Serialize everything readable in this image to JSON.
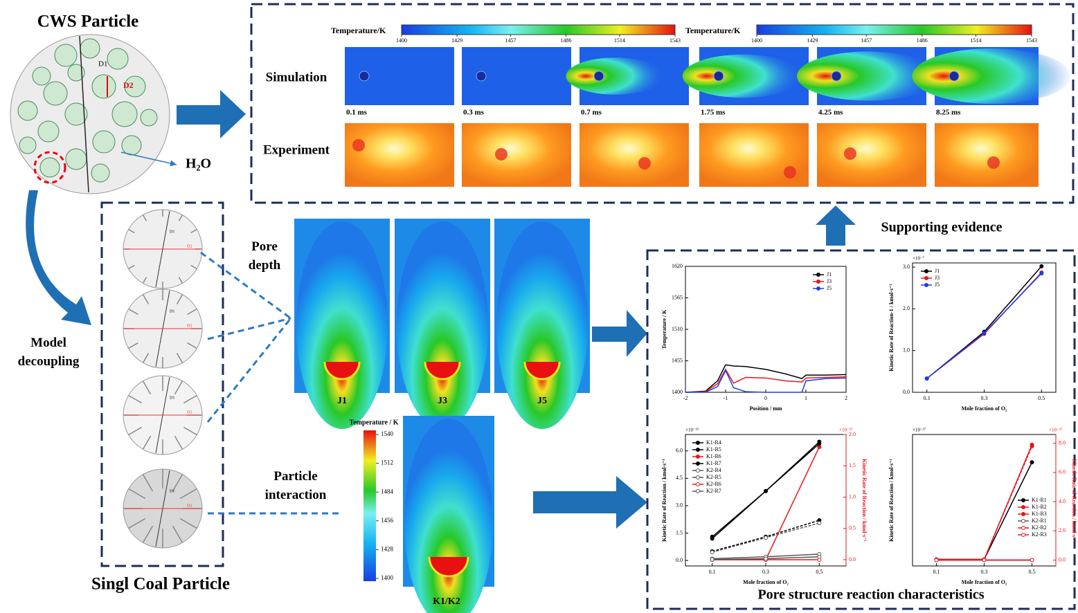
{
  "cws": {
    "title": "CWS Particle",
    "d1": "D1",
    "d2": "D2",
    "h2o": "H₂O"
  },
  "decoupling": {
    "label": "Model decoupling",
    "caption": "Singl Coal Particle",
    "particles": [
      {
        "d1": "D1",
        "d2": "D2"
      },
      {
        "d1": "D1",
        "d2": "D2"
      },
      {
        "d1": "D1",
        "d2": "D2"
      },
      {
        "d1": "D1",
        "d2": "D2"
      }
    ]
  },
  "top": {
    "colorbars": [
      {
        "label": "Temperature/K",
        "ticks": [
          1400,
          1429,
          1457,
          1486,
          1514,
          1543
        ]
      },
      {
        "label": "Temperature/K",
        "ticks": [
          1400,
          1429,
          1457,
          1486,
          1514,
          1543
        ]
      }
    ],
    "rows": [
      "Simulation",
      "Experiment"
    ],
    "times": [
      "0.1 ms",
      "0.3 ms",
      "0.7 ms",
      "1.75 ms",
      "4.25 ms",
      "8.25 ms"
    ]
  },
  "pore": {
    "label": "Pore depth",
    "cases": [
      "J1",
      "J3",
      "J5"
    ]
  },
  "interaction": {
    "label": "Particle interaction",
    "colorbar": {
      "label": "Temperature / K",
      "ticks": [
        1540,
        1512,
        1484,
        1456,
        1428,
        1400
      ]
    },
    "case": "K1/K2"
  },
  "evidence": "Supporting evidence",
  "reaction": {
    "caption": "Pore structure reaction characteristics",
    "charts": [
      {
        "type": "line",
        "xlabel": "Position / mm",
        "ylabel": "Temperature / K",
        "xlim": [
          -2,
          2
        ],
        "ylim": [
          1400,
          1620
        ],
        "xticks": [
          -2,
          -1,
          0,
          1,
          2
        ],
        "yticks": [
          1400,
          1455,
          1510,
          1565,
          1620
        ],
        "x": [
          -2,
          -1.5,
          -1.2,
          -1,
          -0.8,
          -0.5,
          0,
          0.5,
          0.9,
          1,
          1.5,
          2
        ],
        "series": [
          {
            "name": "J1",
            "color": "#000000",
            "values": [
              1400,
              1402,
              1420,
              1448,
              1446,
              1445,
              1440,
              1432,
              1424,
              1430,
              1430,
              1431
            ]
          },
          {
            "name": "J3",
            "color": "#e8141c",
            "values": [
              1400,
              1401,
              1415,
              1440,
              1416,
              1426,
              1425,
              1420,
              1418,
              1425,
              1426,
              1427
            ]
          },
          {
            "name": "J5",
            "color": "#1b3ee8",
            "values": [
              1400,
              1400,
              1410,
              1438,
              1408,
              1401,
              1400,
              1400,
              1400,
              1420,
              1424,
              1425
            ]
          }
        ]
      },
      {
        "type": "line",
        "xlabel": "Mole fraction of O₂",
        "ylabel": "Kinetic Rate of Reaction-1 / kmol·s⁻¹",
        "multiplier": "×10⁻⁷",
        "xlim": [
          0.05,
          0.55
        ],
        "ylim": [
          0,
          3.1
        ],
        "xticks": [
          0.1,
          0.3,
          0.5
        ],
        "yticks": [
          {
            "value": 0,
            "label": "0.0"
          },
          {
            "value": 1,
            "label": "1.0"
          },
          {
            "value": 2,
            "label": "2.0"
          },
          {
            "value": 3,
            "label": "3.0"
          }
        ],
        "x": [
          0.1,
          0.3,
          0.5
        ],
        "series": [
          {
            "name": "J1",
            "color": "#000000",
            "values": [
              0.33,
              1.45,
              3.02
            ]
          },
          {
            "name": "J3",
            "color": "#e8141c",
            "values": [
              0.33,
              1.4,
              2.87
            ]
          },
          {
            "name": "J5",
            "color": "#1b3ee8",
            "values": [
              0.33,
              1.42,
              2.85
            ]
          }
        ]
      },
      {
        "type": "line",
        "xlabel": "Mole fraction of O₂",
        "ylabel": "Kinetic Rate of Reaction / kmol·s⁻¹",
        "y2label": "Kinetic Rate of Reaction / kmol·s⁻¹",
        "multiplier": "×10⁻²³",
        "multiplier2": "×10⁻²³",
        "xlim": [
          0.0,
          0.6
        ],
        "ylim": [
          -0.3,
          6.9
        ],
        "y2lim": [
          -0.1,
          2.0
        ],
        "xticks": [
          0.1,
          0.3,
          0.5
        ],
        "yticks": [
          {
            "value": 0,
            "label": "0.0"
          },
          1.5,
          {
            "value": 3,
            "label": "3.0"
          },
          4.5,
          {
            "value": 6,
            "label": "6.0"
          }
        ],
        "y2ticks": [
          {
            "value": 0,
            "label": "0.0"
          },
          0.5,
          {
            "value": 1,
            "label": "1.0"
          },
          1.5,
          {
            "value": 2,
            "label": "2.0"
          }
        ],
        "x": [
          0.1,
          0.3,
          0.5
        ],
        "series": [
          {
            "name": "K1-R4",
            "color": "#000000",
            "values": [
              1.2,
              3.8,
              6.5
            ]
          },
          {
            "name": "K1-R5",
            "color": "#000000",
            "dash": true,
            "values": [
              0.5,
              1.3,
              2.2
            ]
          },
          {
            "name": "K1-R6",
            "color": "#e8141c",
            "axis": "y2",
            "values": [
              0.0,
              0.0,
              1.8
            ]
          },
          {
            "name": "K1-R7",
            "color": "#000000",
            "values": [
              1.3,
              3.8,
              6.4
            ]
          },
          {
            "name": "K2-R4",
            "color": "#555555",
            "hollow": true,
            "values": [
              0.1,
              0.2,
              0.35
            ]
          },
          {
            "name": "K2-R5",
            "color": "#555555",
            "hollow": true,
            "dash": true,
            "values": [
              0.45,
              1.25,
              2.05
            ]
          },
          {
            "name": "K2-R6",
            "color": "#e8141c",
            "hollow": true,
            "axis": "y2",
            "values": [
              0.0,
              0.0,
              0.0
            ]
          },
          {
            "name": "K2-R7",
            "color": "#555555",
            "hollow": true,
            "values": [
              0.05,
              0.1,
              0.2
            ]
          }
        ]
      },
      {
        "type": "line",
        "xlabel": "Mole fraction of O₂",
        "ylabel": "Kinetic Rate of Reaction / kmol·s⁻¹",
        "y2label": "Kinetic Rate of Reaction / kmol·s⁻¹",
        "multiplier": "×10⁻²⁷",
        "multiplier2": "×10⁻²³",
        "xlim": [
          0.0,
          0.6
        ],
        "y2lim": [
          -0.4,
          8.6
        ],
        "xticks": [
          0.1,
          0.3,
          0.5
        ],
        "y2ticks": [
          {
            "value": 0,
            "label": "0.0"
          },
          {
            "value": 2,
            "label": "2.0"
          },
          {
            "value": 4,
            "label": "4.0"
          },
          {
            "value": 6,
            "label": "6.0"
          },
          {
            "value": 8,
            "label": "8.0"
          }
        ],
        "x": [
          0.1,
          0.3,
          0.5
        ],
        "series": [
          {
            "name": "K1-R1",
            "color": "#000000",
            "axis": "y2",
            "values": [
              0.05,
              0.05,
              6.7
            ]
          },
          {
            "name": "K1-R2",
            "color": "#e8141c",
            "axis": "y2",
            "values": [
              0.05,
              0.05,
              7.9
            ]
          },
          {
            "name": "K1-R3",
            "color": "#e8141c",
            "dash": true,
            "axis": "y2",
            "values": [
              0.05,
              0.05,
              7.8
            ]
          },
          {
            "name": "K2-R1",
            "color": "#555555",
            "hollow": true,
            "axis": "y2",
            "values": [
              0.0,
              0.0,
              0.0
            ]
          },
          {
            "name": "K2-R2",
            "color": "#e8141c",
            "hollow": true,
            "axis": "y2",
            "values": [
              0.0,
              0.0,
              0.0
            ]
          },
          {
            "name": "K2-R3",
            "color": "#e8141c",
            "hollow": true,
            "dash": true,
            "axis": "y2",
            "values": [
              0.0,
              0.0,
              0.0
            ]
          }
        ]
      }
    ]
  }
}
